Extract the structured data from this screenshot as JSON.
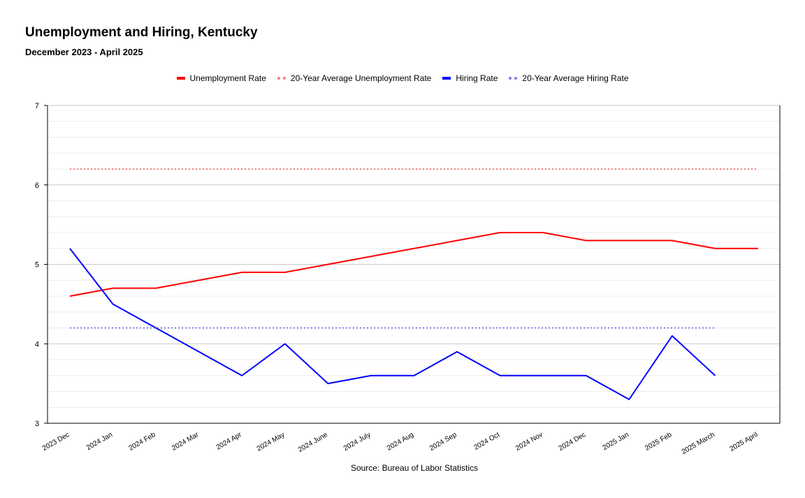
{
  "chart_data": {
    "type": "line",
    "title": "Unemployment and Hiring, Kentucky",
    "subtitle": "December 2023 - April 2025",
    "source": "Source: Bureau of Labor Statistics",
    "categories": [
      "2023 Dec",
      "2024 Jan",
      "2024 Feb",
      "2024 Mar",
      "2024 Apr",
      "2024 May",
      "2024 June",
      "2024 July",
      "2024 Aug",
      "2024 Sep",
      "2024 Oct",
      "2024 Nov",
      "2024 Dec",
      "2025 Jan",
      "2025 Feb",
      "2025 March",
      "2025 April"
    ],
    "ylim": [
      3,
      7
    ],
    "yticks": [
      "3",
      "4",
      "5",
      "6",
      "7"
    ],
    "legend_position": "top",
    "grid": true,
    "series": [
      {
        "name": "Unemployment Rate",
        "color": "#ff0000",
        "style": "solid",
        "values": [
          4.6,
          4.7,
          4.7,
          4.8,
          4.9,
          4.9,
          5.0,
          5.1,
          5.2,
          5.3,
          5.4,
          5.4,
          5.3,
          5.3,
          5.3,
          5.2,
          5.2
        ]
      },
      {
        "name": "20-Year Average Unemployment Rate",
        "color": "#f08080",
        "style": "dotted",
        "values": [
          6.2,
          6.2,
          6.2,
          6.2,
          6.2,
          6.2,
          6.2,
          6.2,
          6.2,
          6.2,
          6.2,
          6.2,
          6.2,
          6.2,
          6.2,
          6.2,
          6.2
        ]
      },
      {
        "name": "Hiring Rate",
        "color": "#0000ff",
        "style": "solid",
        "values": [
          5.2,
          4.5,
          4.2,
          3.9,
          3.6,
          4.0,
          3.5,
          3.6,
          3.6,
          3.9,
          3.6,
          3.6,
          3.6,
          3.3,
          4.1,
          3.6,
          null
        ]
      },
      {
        "name": "20-Year Average Hiring Rate",
        "color": "#7b7bee",
        "style": "dotted",
        "values": [
          4.2,
          4.2,
          4.2,
          4.2,
          4.2,
          4.2,
          4.2,
          4.2,
          4.2,
          4.2,
          4.2,
          4.2,
          4.2,
          4.2,
          4.2,
          4.2,
          null
        ]
      }
    ]
  }
}
